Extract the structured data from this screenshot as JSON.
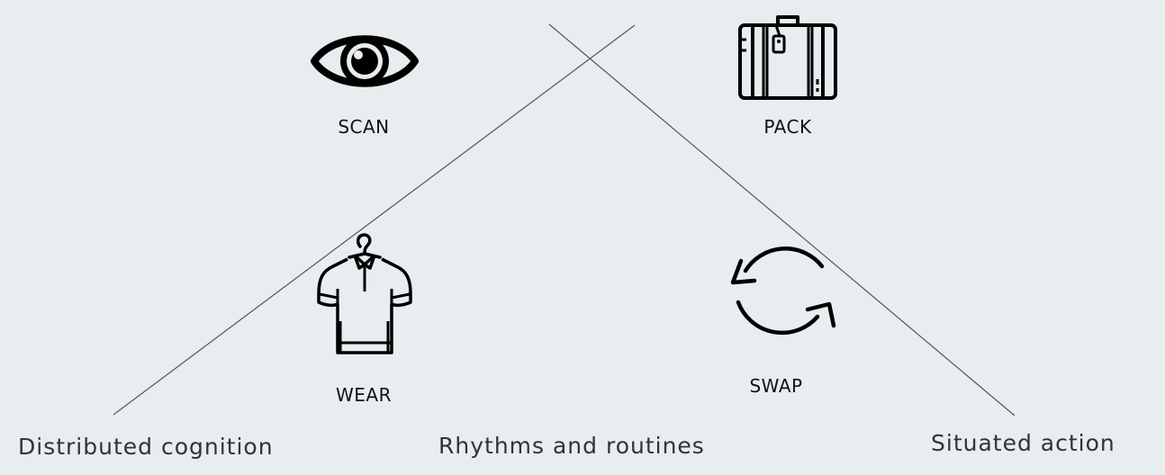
{
  "actions": {
    "scan": {
      "label": "SCAN",
      "icon": "eye-icon"
    },
    "pack": {
      "label": "PACK",
      "icon": "suitcase-icon"
    },
    "wear": {
      "label": "WEAR",
      "icon": "shirt-on-hanger-icon"
    },
    "swap": {
      "label": "SWAP",
      "icon": "swap-arrows-icon"
    }
  },
  "captions": {
    "left": "Distributed cognition",
    "center": "Rhythms and routines",
    "right": "Situated action"
  },
  "colors": {
    "background": "#e8edf0",
    "icon": "#000000",
    "line": "#555555"
  }
}
